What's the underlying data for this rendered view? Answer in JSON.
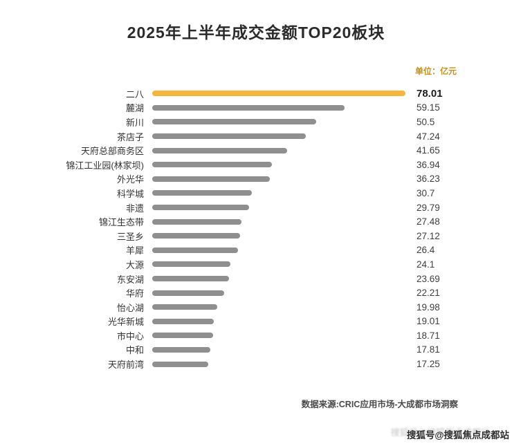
{
  "title": "2025年上半年成交金额TOP20板块",
  "unit_label": "单位：亿元",
  "source": "数据来源:CRIC应用市场-大成都市场洞察",
  "watermark": "搜狐号@搜狐焦点成都站",
  "colors": {
    "highlight_bar": "#F3B73F",
    "bar": "#8F8F8F",
    "unit_text": "#C0911E"
  },
  "chart_data": {
    "type": "bar",
    "orientation": "horizontal",
    "title": "2025年上半年成交金额TOP20板块",
    "unit": "亿元",
    "xlim": [
      0,
      78.01
    ],
    "grid": false,
    "legend": false,
    "highlight_index": 0,
    "categories": [
      "二八",
      "麓湖",
      "新川",
      "茶店子",
      "天府总部商务区",
      "锦江工业园(林家坝)",
      "外光华",
      "科学城",
      "非遗",
      "锦江生态带",
      "三圣乡",
      "羊犀",
      "大源",
      "东安湖",
      "华府",
      "怡心湖",
      "光华新城",
      "市中心",
      "中和",
      "天府前湾"
    ],
    "values": [
      78.01,
      59.15,
      50.5,
      47.24,
      41.65,
      36.94,
      36.23,
      30.7,
      29.79,
      27.48,
      27.12,
      26.4,
      24.1,
      23.69,
      22.21,
      19.98,
      19.01,
      18.71,
      17.81,
      17.25
    ]
  }
}
